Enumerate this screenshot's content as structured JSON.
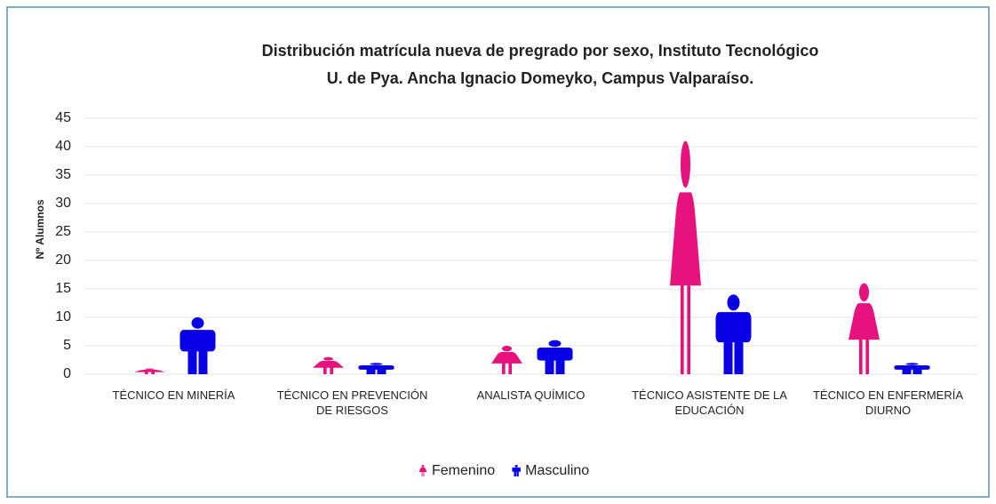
{
  "chart_data": {
    "type": "pictogram",
    "title": [
      "Distribución matrícula nueva de pregrado por sexo, Instituto Tecnológico",
      "U. de Pya. Ancha Ignacio Domeyko, Campus Valparaíso."
    ],
    "y_label": "Nº Alumnos",
    "categories": [
      "TÉCNICO EN MINERÍA",
      "TÉCNICO EN PREVENCIÓN DE RIESGOS",
      "ANALISTA QUÍMICO",
      "TÉCNICO ASISTENTE DE LA EDUCACIÓN",
      "TÉCNICO EN ENFERMERÍA DIURNO"
    ],
    "series": [
      {
        "name": "Femenino",
        "color": "#e6137e",
        "shape": "female",
        "values": [
          1,
          3,
          5,
          41,
          16
        ]
      },
      {
        "name": "Masculino",
        "color": "#0a00e6",
        "shape": "male",
        "values": [
          10,
          2,
          6,
          14,
          2
        ]
      }
    ],
    "ylim": [
      0,
      45
    ],
    "yticks": [
      0,
      5,
      10,
      15,
      20,
      25,
      30,
      35,
      40,
      45
    ],
    "grid": true,
    "legend": "bottom"
  }
}
